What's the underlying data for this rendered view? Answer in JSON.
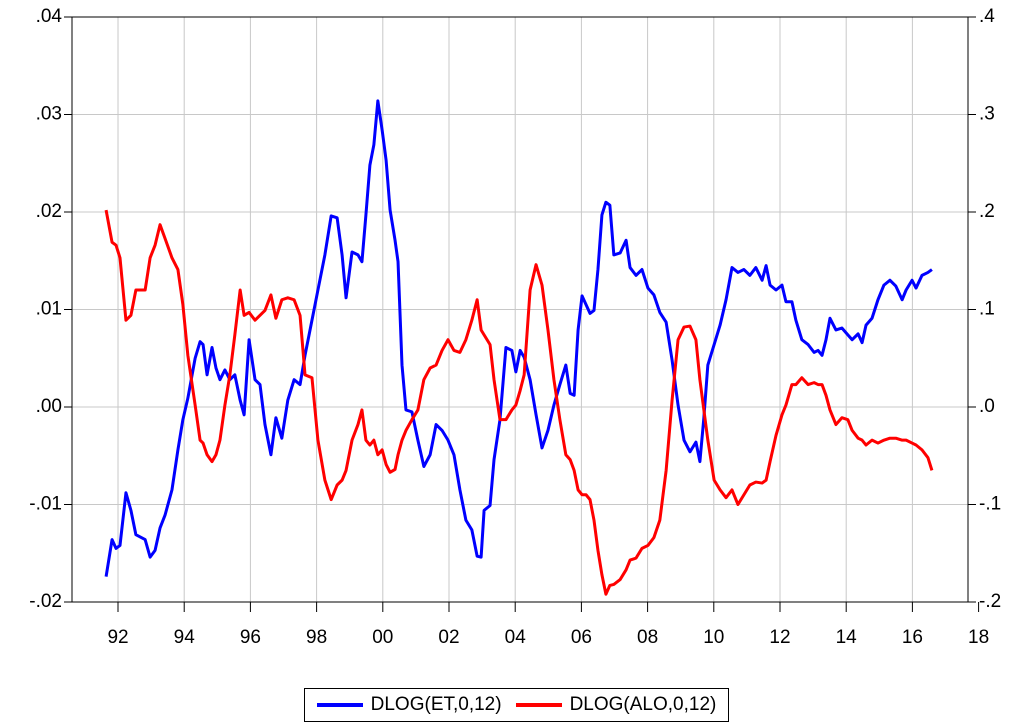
{
  "chart_data": {
    "type": "line",
    "x": [
      1991.64,
      1991.82,
      1991.94,
      1992.06,
      1992.24,
      1992.39,
      1992.54,
      1992.82,
      1992.97,
      1993.12,
      1993.27,
      1993.42,
      1993.63,
      1993.81,
      1993.96,
      1994.11,
      1994.33,
      1994.48,
      1994.57,
      1994.69,
      1994.84,
      1994.96,
      1995.08,
      1995.23,
      1995.38,
      1995.53,
      1995.69,
      1995.81,
      1995.96,
      1996.14,
      1996.29,
      1996.44,
      1996.62,
      1996.77,
      1996.95,
      1997.13,
      1997.32,
      1997.5,
      1997.65,
      1997.86,
      1998.04,
      1998.25,
      1998.44,
      1998.62,
      1998.77,
      1998.89,
      1999.07,
      1999.25,
      1999.37,
      1999.49,
      1999.61,
      1999.73,
      1999.85,
      1999.98,
      2000.1,
      2000.22,
      2000.37,
      2000.46,
      2000.58,
      2000.7,
      2000.88,
      2001.06,
      2001.24,
      2001.43,
      2001.61,
      2001.79,
      2001.97,
      2002.15,
      2002.33,
      2002.51,
      2002.69,
      2002.85,
      2002.97,
      2003.06,
      2003.24,
      2003.36,
      2003.54,
      2003.72,
      2003.9,
      2004.02,
      2004.15,
      2004.27,
      2004.45,
      2004.63,
      2004.81,
      2004.99,
      2005.17,
      2005.35,
      2005.53,
      2005.66,
      2005.78,
      2005.9,
      2006.02,
      2006.14,
      2006.26,
      2006.38,
      2006.5,
      2006.62,
      2006.74,
      2006.86,
      2006.98,
      2007.17,
      2007.35,
      2007.47,
      2007.65,
      2007.83,
      2008.01,
      2008.19,
      2008.37,
      2008.56,
      2008.74,
      2008.92,
      2009.1,
      2009.28,
      2009.46,
      2009.58,
      2009.7,
      2009.82,
      2010.01,
      2010.19,
      2010.37,
      2010.55,
      2010.73,
      2010.91,
      2011.09,
      2011.27,
      2011.46,
      2011.58,
      2011.7,
      2011.88,
      2012.06,
      2012.18,
      2012.36,
      2012.48,
      2012.66,
      2012.85,
      2013.03,
      2013.15,
      2013.27,
      2013.39,
      2013.51,
      2013.69,
      2013.87,
      2014.05,
      2014.18,
      2014.36,
      2014.48,
      2014.6,
      2014.78,
      2014.96,
      2015.14,
      2015.32,
      2015.5,
      2015.69,
      2015.81,
      2015.99,
      2016.11,
      2016.29,
      2016.47,
      2016.59
    ],
    "series": [
      {
        "name": "DLOG(ET,0,12)",
        "color": "#0000ff",
        "axis": "y",
        "values": [
          -0.0174,
          -0.0136,
          -0.0145,
          -0.0142,
          -0.0088,
          -0.0106,
          -0.0131,
          -0.0136,
          -0.0154,
          -0.0147,
          -0.0124,
          -0.0111,
          -0.0085,
          -0.0044,
          -0.0013,
          0.0009,
          0.005,
          0.0067,
          0.0064,
          0.0033,
          0.0061,
          0.004,
          0.0028,
          0.0038,
          0.0028,
          0.0033,
          0.0007,
          -0.0008,
          0.0069,
          0.0028,
          0.0023,
          -0.0018,
          -0.0049,
          -0.0011,
          -0.0032,
          0.0007,
          0.0028,
          0.0023,
          0.0053,
          0.0089,
          0.012,
          0.0156,
          0.0196,
          0.0194,
          0.0156,
          0.0112,
          0.0159,
          0.0156,
          0.0149,
          0.0197,
          0.0248,
          0.0269,
          0.0314,
          0.0284,
          0.0253,
          0.0202,
          0.0171,
          0.0149,
          0.0043,
          -0.0003,
          -0.0005,
          -0.0034,
          -0.0061,
          -0.0049,
          -0.0018,
          -0.0024,
          -0.0034,
          -0.0049,
          -0.0085,
          -0.0116,
          -0.0126,
          -0.0153,
          -0.0154,
          -0.0106,
          -0.0101,
          -0.0054,
          -0.0013,
          0.0061,
          0.0058,
          0.0036,
          0.0058,
          0.0051,
          0.0028,
          -0.0008,
          -0.0042,
          -0.0024,
          0.0002,
          0.0023,
          0.0043,
          0.0014,
          0.0012,
          0.0079,
          0.0114,
          0.0105,
          0.0096,
          0.0099,
          0.0141,
          0.0197,
          0.021,
          0.0207,
          0.0156,
          0.0158,
          0.0171,
          0.0143,
          0.0135,
          0.0141,
          0.0122,
          0.0115,
          0.0097,
          0.0087,
          0.0048,
          0.0002,
          -0.0034,
          -0.0046,
          -0.0036,
          -0.0056,
          -0.0011,
          0.0043,
          0.0064,
          0.0084,
          0.011,
          0.0143,
          0.0138,
          0.0141,
          0.0135,
          0.0143,
          0.013,
          0.0145,
          0.0125,
          0.012,
          0.0125,
          0.0108,
          0.0108,
          0.0089,
          0.0069,
          0.0064,
          0.0056,
          0.0058,
          0.0053,
          0.0069,
          0.0091,
          0.0079,
          0.0081,
          0.0074,
          0.0069,
          0.0075,
          0.0066,
          0.0084,
          0.0091,
          0.011,
          0.0125,
          0.013,
          0.0124,
          0.011,
          0.012,
          0.013,
          0.0122,
          0.0135,
          0.0138,
          0.0141
        ]
      },
      {
        "name": "DLOG(ALO,0,12)",
        "color": "#ff0000",
        "axis": "y2",
        "values": [
          0.202,
          0.169,
          0.166,
          0.153,
          0.089,
          0.094,
          0.12,
          0.12,
          0.153,
          0.166,
          0.187,
          0.173,
          0.153,
          0.141,
          0.105,
          0.053,
          0.002,
          -0.034,
          -0.037,
          -0.049,
          -0.056,
          -0.049,
          -0.034,
          0.002,
          0.033,
          0.074,
          0.12,
          0.094,
          0.097,
          0.089,
          0.094,
          0.099,
          0.115,
          0.091,
          0.11,
          0.112,
          0.11,
          0.094,
          0.033,
          0.03,
          -0.034,
          -0.075,
          -0.095,
          -0.08,
          -0.075,
          -0.065,
          -0.034,
          -0.018,
          -0.003,
          -0.034,
          -0.039,
          -0.034,
          -0.049,
          -0.044,
          -0.059,
          -0.067,
          -0.064,
          -0.049,
          -0.034,
          -0.024,
          -0.013,
          -0.003,
          0.028,
          0.04,
          0.043,
          0.058,
          0.069,
          0.058,
          0.056,
          0.069,
          0.089,
          0.11,
          0.079,
          0.074,
          0.064,
          0.028,
          -0.013,
          -0.013,
          -0.003,
          0.002,
          0.017,
          0.033,
          0.12,
          0.146,
          0.125,
          0.079,
          0.028,
          -0.013,
          -0.049,
          -0.054,
          -0.065,
          -0.085,
          -0.09,
          -0.09,
          -0.095,
          -0.116,
          -0.147,
          -0.172,
          -0.192,
          -0.183,
          -0.182,
          -0.177,
          -0.167,
          -0.157,
          -0.155,
          -0.145,
          -0.142,
          -0.134,
          -0.116,
          -0.065,
          0.007,
          0.069,
          0.082,
          0.083,
          0.069,
          0.028,
          -0.003,
          -0.034,
          -0.075,
          -0.085,
          -0.093,
          -0.085,
          -0.1,
          -0.09,
          -0.08,
          -0.077,
          -0.078,
          -0.075,
          -0.056,
          -0.029,
          -0.008,
          0.002,
          0.023,
          0.023,
          0.03,
          0.023,
          0.025,
          0.023,
          0.023,
          0.012,
          -0.003,
          -0.018,
          -0.011,
          -0.013,
          -0.024,
          -0.032,
          -0.034,
          -0.039,
          -0.034,
          -0.037,
          -0.034,
          -0.032,
          -0.032,
          -0.034,
          -0.034,
          -0.037,
          -0.039,
          -0.044,
          -0.052,
          -0.065
        ]
      }
    ],
    "xlim": [
      1990.61,
      2017.68
    ],
    "xticks": [
      {
        "value": 1992,
        "label": "92"
      },
      {
        "value": 1994,
        "label": "94"
      },
      {
        "value": 1996,
        "label": "96"
      },
      {
        "value": 1998,
        "label": "98"
      },
      {
        "value": 2000,
        "label": "00"
      },
      {
        "value": 2002,
        "label": "02"
      },
      {
        "value": 2004,
        "label": "04"
      },
      {
        "value": 2006,
        "label": "06"
      },
      {
        "value": 2008,
        "label": "08"
      },
      {
        "value": 2010,
        "label": "10"
      },
      {
        "value": 2012,
        "label": "12"
      },
      {
        "value": 2014,
        "label": "14"
      },
      {
        "value": 2016,
        "label": "16"
      },
      {
        "value": 2018,
        "label": "18"
      }
    ],
    "ylim": [
      -0.02,
      0.04
    ],
    "yticks": [
      {
        "value": -0.02,
        "label": "-.02"
      },
      {
        "value": -0.01,
        "label": "-.01"
      },
      {
        "value": 0,
        "label": ".00"
      },
      {
        "value": 0.01,
        "label": ".01"
      },
      {
        "value": 0.02,
        "label": ".02"
      },
      {
        "value": 0.03,
        "label": ".03"
      },
      {
        "value": 0.04,
        "label": ".04"
      }
    ],
    "y2lim": [
      -0.2,
      0.4
    ],
    "y2ticks": [
      {
        "value": -0.2,
        "label": "-.2"
      },
      {
        "value": -0.1,
        "label": "-.1"
      },
      {
        "value": 0,
        "label": ".0"
      },
      {
        "value": 0.1,
        "label": ".1"
      },
      {
        "value": 0.2,
        "label": ".2"
      },
      {
        "value": 0.3,
        "label": ".3"
      },
      {
        "value": 0.4,
        "label": ".4"
      }
    ],
    "grid": true,
    "legend": "bottom"
  }
}
